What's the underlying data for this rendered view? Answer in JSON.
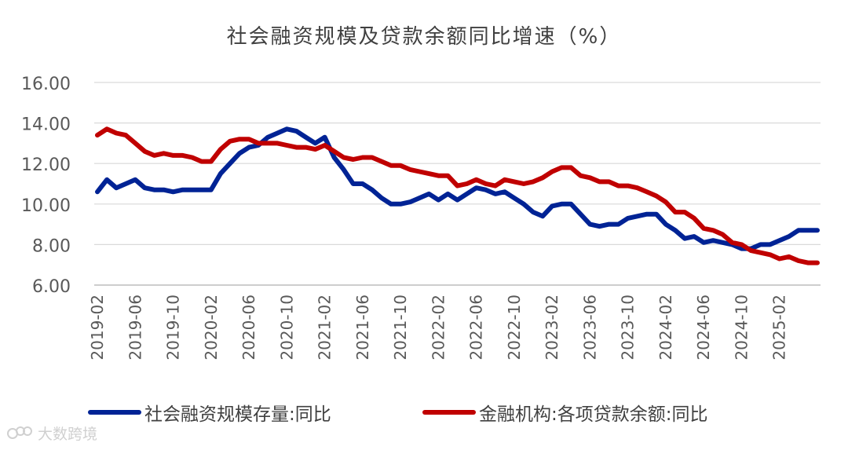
{
  "chart_data": {
    "type": "line",
    "title": "社会融资规模及贷款余额同比增速（%）",
    "xlabel": "",
    "ylabel": "",
    "ylim": [
      6,
      16
    ],
    "yticks": [
      "6.00",
      "8.00",
      "10.00",
      "12.00",
      "14.00",
      "16.00"
    ],
    "grid": true,
    "legend_position": "bottom",
    "x": [
      "2019-02",
      "2019-03",
      "2019-04",
      "2019-05",
      "2019-06",
      "2019-07",
      "2019-08",
      "2019-09",
      "2019-10",
      "2019-11",
      "2019-12",
      "2020-01",
      "2020-02",
      "2020-03",
      "2020-04",
      "2020-05",
      "2020-06",
      "2020-07",
      "2020-08",
      "2020-09",
      "2020-10",
      "2020-11",
      "2020-12",
      "2021-01",
      "2021-02",
      "2021-03",
      "2021-04",
      "2021-05",
      "2021-06",
      "2021-07",
      "2021-08",
      "2021-09",
      "2021-10",
      "2021-11",
      "2021-12",
      "2022-01",
      "2022-02",
      "2022-03",
      "2022-04",
      "2022-05",
      "2022-06",
      "2022-07",
      "2022-08",
      "2022-09",
      "2022-10",
      "2022-11",
      "2022-12",
      "2023-01",
      "2023-02",
      "2023-03",
      "2023-04",
      "2023-05",
      "2023-06",
      "2023-07",
      "2023-08",
      "2023-09",
      "2023-10",
      "2023-11",
      "2023-12",
      "2024-01",
      "2024-02",
      "2024-03",
      "2024-04",
      "2024-05",
      "2024-06",
      "2024-07",
      "2024-08",
      "2024-09",
      "2024-10",
      "2024-11",
      "2024-12",
      "2025-01",
      "2025-02",
      "2025-03",
      "2025-04",
      "2025-05",
      "2025-06"
    ],
    "xtick_labels": [
      "2019-02",
      "2019-06",
      "2019-10",
      "2020-02",
      "2020-06",
      "2020-10",
      "2021-02",
      "2021-06",
      "2021-10",
      "2022-02",
      "2022-06",
      "2022-10",
      "2023-02",
      "2023-06",
      "2023-10",
      "2024-02",
      "2024-06",
      "2024-10",
      "2025-02"
    ],
    "series": [
      {
        "name": "社会融资规模存量:同比",
        "color": "#002395",
        "values": [
          10.6,
          11.2,
          10.8,
          11.0,
          11.2,
          10.8,
          10.7,
          10.7,
          10.6,
          10.7,
          10.7,
          10.7,
          10.7,
          11.5,
          12.0,
          12.5,
          12.8,
          12.9,
          13.3,
          13.5,
          13.7,
          13.6,
          13.3,
          13.0,
          13.3,
          12.3,
          11.7,
          11.0,
          11.0,
          10.7,
          10.3,
          10.0,
          10.0,
          10.1,
          10.3,
          10.5,
          10.2,
          10.5,
          10.2,
          10.5,
          10.8,
          10.7,
          10.5,
          10.6,
          10.3,
          10.0,
          9.6,
          9.4,
          9.9,
          10.0,
          10.0,
          9.5,
          9.0,
          8.9,
          9.0,
          9.0,
          9.3,
          9.4,
          9.5,
          9.5,
          9.0,
          8.7,
          8.3,
          8.4,
          8.1,
          8.2,
          8.1,
          8.0,
          7.8,
          7.8,
          8.0,
          8.0,
          8.2,
          8.4,
          8.7,
          8.7,
          8.7
        ]
      },
      {
        "name": "金融机构:各项贷款余额:同比",
        "color": "#c00000",
        "values": [
          13.4,
          13.7,
          13.5,
          13.4,
          13.0,
          12.6,
          12.4,
          12.5,
          12.4,
          12.4,
          12.3,
          12.1,
          12.1,
          12.7,
          13.1,
          13.2,
          13.2,
          13.0,
          13.0,
          13.0,
          12.9,
          12.8,
          12.8,
          12.7,
          12.9,
          12.6,
          12.3,
          12.2,
          12.3,
          12.3,
          12.1,
          11.9,
          11.9,
          11.7,
          11.6,
          11.5,
          11.4,
          11.4,
          10.9,
          11.0,
          11.2,
          11.0,
          10.9,
          11.2,
          11.1,
          11.0,
          11.1,
          11.3,
          11.6,
          11.8,
          11.8,
          11.4,
          11.3,
          11.1,
          11.1,
          10.9,
          10.9,
          10.8,
          10.6,
          10.4,
          10.1,
          9.6,
          9.6,
          9.3,
          8.8,
          8.7,
          8.5,
          8.1,
          8.0,
          7.7,
          7.6,
          7.5,
          7.3,
          7.4,
          7.2,
          7.1,
          7.1
        ]
      }
    ]
  },
  "watermark": {
    "text": "大数跨境"
  }
}
